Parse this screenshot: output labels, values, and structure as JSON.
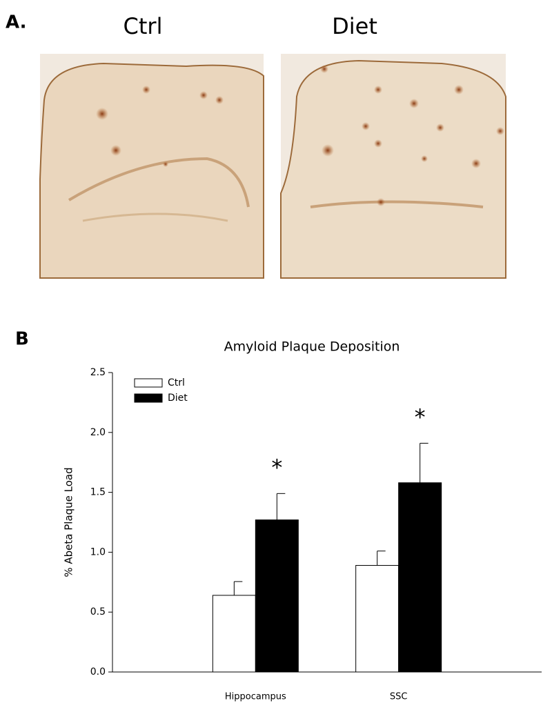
{
  "panel_a": {
    "label": "A.",
    "titles": [
      "Ctrl",
      "Diet"
    ]
  },
  "chart_data": {
    "type": "bar",
    "panel_label": "B",
    "title": "Amyloid Plaque Deposition",
    "y_label": "% Abeta Plaque Load",
    "categories": [
      "Hippocampus",
      "SSC"
    ],
    "series": [
      {
        "name": "Ctrl",
        "color": "#ffffff",
        "values": [
          0.64,
          0.89
        ],
        "errors": [
          0.115,
          0.12
        ]
      },
      {
        "name": "Diet",
        "color": "#000000",
        "values": [
          1.27,
          1.58
        ],
        "errors": [
          0.22,
          0.33
        ],
        "significance": [
          "*",
          "*"
        ]
      }
    ],
    "ylim": [
      0,
      2.5
    ],
    "yticks": [
      {
        "value": 0,
        "label": "0.0"
      },
      0.5,
      {
        "value": 1,
        "label": "1.0"
      },
      1.5,
      {
        "value": 2,
        "label": "2.0"
      },
      2.5
    ]
  }
}
